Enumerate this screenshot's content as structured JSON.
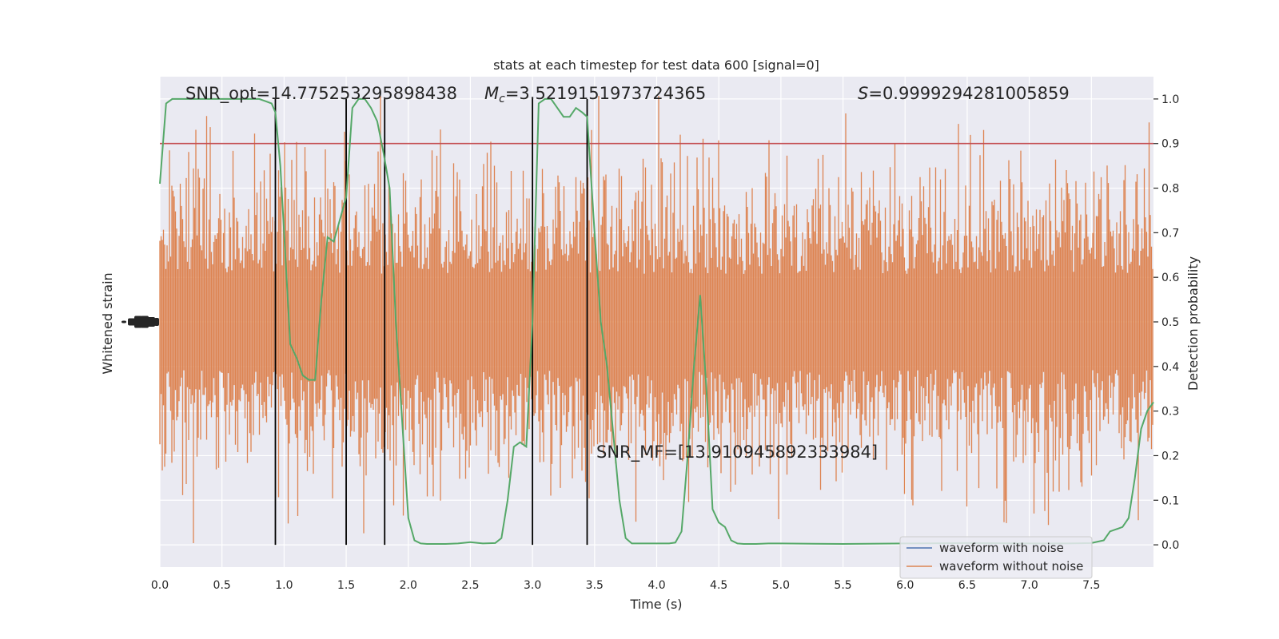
{
  "chart_data": {
    "type": "line",
    "title": "stats at each timestep for test data 600 [signal=0]",
    "xlabel": "Time (s)",
    "ylabel_left": "Whitened strain",
    "ylabel_right": "Detection probability",
    "xlim": [
      0,
      8
    ],
    "ylim_right": [
      -0.05,
      1.05
    ],
    "xticks": [
      "0.0",
      "0.5",
      "1.0",
      "1.5",
      "2.0",
      "2.5",
      "3.0",
      "3.5",
      "4.0",
      "4.5",
      "5.0",
      "5.5",
      "6.0",
      "6.5",
      "7.0",
      "7.5"
    ],
    "yticks_right": [
      "0.0",
      "0.1",
      "0.2",
      "0.3",
      "0.4",
      "0.5",
      "0.6",
      "0.7",
      "0.8",
      "0.9",
      "1.0"
    ],
    "grid": true,
    "threshold": 0.9,
    "vertical_lines": [
      0.93,
      1.5,
      1.81,
      3.0,
      3.44
    ],
    "annotations": {
      "snr_opt": "SNR_opt=14.775253295898438",
      "mc_symbol": "M",
      "mc_sub": "c",
      "mc_value": "=3.5219151973724365",
      "s_symbol": "S",
      "s_value": "=0.9999294281005859",
      "snr_mf": "SNR_MF=[13.910945892333984]"
    },
    "legend": {
      "position": "lower-right",
      "entries": [
        "waveform with noise",
        "waveform without noise"
      ]
    },
    "colors": {
      "noise": "#dd8452",
      "waveform": "#4c72b0",
      "probability": "#55a868",
      "threshold": "#c44e52",
      "vlines": "#000000",
      "background": "#eaeaf2",
      "grid": "#ffffff"
    },
    "series": [
      {
        "name": "Detection probability",
        "x": [
          0.0,
          0.05,
          0.1,
          0.15,
          0.2,
          0.3,
          0.4,
          0.5,
          0.6,
          0.7,
          0.75,
          0.8,
          0.85,
          0.9,
          0.93,
          0.97,
          1.0,
          1.05,
          1.1,
          1.15,
          1.2,
          1.25,
          1.3,
          1.35,
          1.4,
          1.45,
          1.5,
          1.55,
          1.6,
          1.65,
          1.7,
          1.75,
          1.8,
          1.85,
          1.9,
          1.95,
          2.0,
          2.05,
          2.1,
          2.15,
          2.2,
          2.3,
          2.4,
          2.5,
          2.6,
          2.7,
          2.75,
          2.8,
          2.85,
          2.9,
          2.95,
          3.0,
          3.05,
          3.1,
          3.15,
          3.2,
          3.25,
          3.3,
          3.35,
          3.4,
          3.44,
          3.5,
          3.55,
          3.6,
          3.65,
          3.7,
          3.75,
          3.8,
          3.9,
          4.0,
          4.1,
          4.15,
          4.2,
          4.25,
          4.3,
          4.35,
          4.4,
          4.45,
          4.5,
          4.55,
          4.6,
          4.65,
          4.7,
          4.8,
          4.9,
          5.0,
          5.5,
          6.0,
          6.5,
          7.0,
          7.3,
          7.5,
          7.6,
          7.65,
          7.7,
          7.75,
          7.8,
          7.85,
          7.9,
          7.95,
          8.0
        ],
        "values": [
          0.81,
          0.99,
          1.0,
          1.0,
          1.0,
          1.0,
          1.0,
          1.0,
          1.0,
          1.0,
          1.0,
          1.0,
          0.995,
          0.99,
          0.97,
          0.85,
          0.7,
          0.45,
          0.42,
          0.38,
          0.37,
          0.37,
          0.55,
          0.69,
          0.68,
          0.73,
          0.78,
          0.98,
          1.0,
          1.0,
          0.98,
          0.95,
          0.88,
          0.8,
          0.5,
          0.28,
          0.06,
          0.01,
          0.003,
          0.002,
          0.002,
          0.002,
          0.003,
          0.006,
          0.003,
          0.004,
          0.015,
          0.1,
          0.22,
          0.23,
          0.22,
          0.5,
          0.99,
          1.0,
          1.0,
          0.98,
          0.96,
          0.96,
          0.98,
          0.97,
          0.96,
          0.7,
          0.5,
          0.4,
          0.25,
          0.1,
          0.015,
          0.003,
          0.003,
          0.003,
          0.003,
          0.005,
          0.03,
          0.2,
          0.4,
          0.56,
          0.35,
          0.08,
          0.05,
          0.04,
          0.01,
          0.003,
          0.002,
          0.002,
          0.003,
          0.003,
          0.002,
          0.003,
          0.004,
          0.003,
          0.003,
          0.004,
          0.01,
          0.03,
          0.035,
          0.04,
          0.06,
          0.15,
          0.26,
          0.3,
          0.32
        ]
      }
    ]
  }
}
